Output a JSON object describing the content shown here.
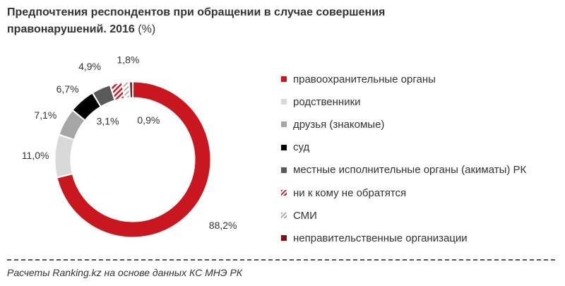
{
  "title": {
    "text": "Предпочтения респондентов при обращении в случае совершения правонарушений.  2016",
    "unit": "(%)"
  },
  "source": "Расчеты Ranking.kz на основе данных КС МНЭ РК",
  "chart_data": {
    "type": "donut",
    "title": "Предпочтения респондентов при обращении в случае совершения правонарушений.  2016 (%)",
    "categories": [
      "правоохранительные органы",
      "родственники",
      "друзья (знакомые)",
      "суд",
      "местные исполнительные органы (акиматы) РК",
      "ни к кому не обратятся",
      "СМИ",
      "неправительственные организации"
    ],
    "values": [
      88.2,
      11.0,
      7.1,
      6.7,
      4.9,
      3.1,
      1.8,
      0.9
    ],
    "value_labels": [
      "88,2%",
      "11,0%",
      "7,1%",
      "6,7%",
      "4,9%",
      "3,1%",
      "1,8%",
      "0,9%"
    ],
    "colors": [
      "#c8171e",
      "#d9d9d9",
      "#a6a6a6",
      "#000000",
      "#595959",
      "#c8171e",
      "#a6a6a6",
      "#7f1015"
    ],
    "patterns": [
      "solid",
      "solid",
      "solid",
      "solid",
      "solid",
      "hatched",
      "hatched",
      "solid"
    ],
    "legend_position": "right"
  }
}
